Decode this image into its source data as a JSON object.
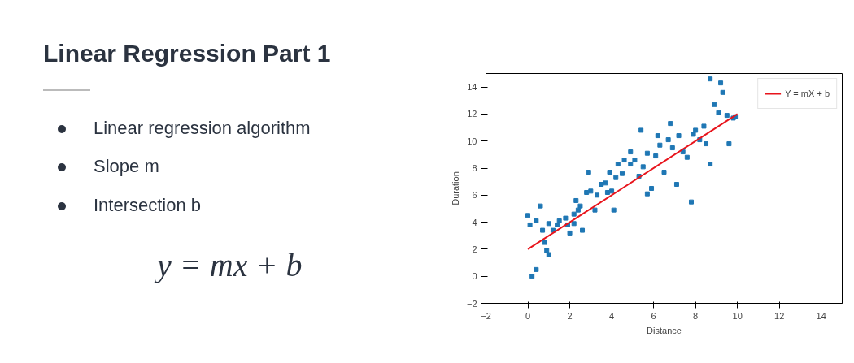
{
  "chart_data": {
    "type": "scatter",
    "title": "Linear Regression Part 1",
    "annotations": [
      "Linear regression algorithm",
      "Slope m",
      "Intersection b",
      "y = mx + b"
    ],
    "xlabel": "Distance",
    "ylabel": "Duration",
    "xlim": [
      -2,
      15
    ],
    "ylim": [
      -2,
      15
    ],
    "xticks": [
      -2,
      0,
      2,
      4,
      6,
      8,
      10,
      12,
      14
    ],
    "yticks": [
      -2,
      0,
      2,
      4,
      6,
      8,
      10,
      12,
      14
    ],
    "grid": false,
    "legend": "top right",
    "marker": "square",
    "series": [
      {
        "color": "#1f77b4",
        "x": [
          0.0,
          0.1,
          0.2,
          0.4,
          0.6,
          0.4,
          0.8,
          0.9,
          1.0,
          0.7,
          1.0,
          1.2,
          1.4,
          1.5,
          1.8,
          1.9,
          2.0,
          2.2,
          2.2,
          2.4,
          2.3,
          2.5,
          2.6,
          2.8,
          2.9,
          3.0,
          3.2,
          3.3,
          3.5,
          3.7,
          3.8,
          3.9,
          4.0,
          4.1,
          4.2,
          4.3,
          4.5,
          4.6,
          4.9,
          4.9,
          5.1,
          5.3,
          5.4,
          5.5,
          5.7,
          5.7,
          5.9,
          6.1,
          6.2,
          6.3,
          6.5,
          6.7,
          6.8,
          6.9,
          7.1,
          7.2,
          7.4,
          7.6,
          7.8,
          7.9,
          8.0,
          8.2,
          8.4,
          8.5,
          8.7,
          8.7,
          8.9,
          9.1,
          9.2,
          9.3,
          9.5,
          9.6,
          9.8,
          9.9
        ],
        "values": [
          4.5,
          3.8,
          0.0,
          0.5,
          5.2,
          4.1,
          2.5,
          1.9,
          1.6,
          3.4,
          3.9,
          3.4,
          3.8,
          4.1,
          4.3,
          3.8,
          3.2,
          3.9,
          4.6,
          4.9,
          5.6,
          5.2,
          3.4,
          6.2,
          7.7,
          6.3,
          4.9,
          6.0,
          6.8,
          6.9,
          6.2,
          7.7,
          6.3,
          4.9,
          7.3,
          8.3,
          7.6,
          8.6,
          9.2,
          8.3,
          8.6,
          7.4,
          10.8,
          8.1,
          6.1,
          9.1,
          6.5,
          8.9,
          10.4,
          9.7,
          7.7,
          10.1,
          11.3,
          9.5,
          6.8,
          10.4,
          9.2,
          8.8,
          5.5,
          10.5,
          10.8,
          10.1,
          11.1,
          9.8,
          8.3,
          14.6,
          12.7,
          12.1,
          14.3,
          13.6,
          11.9,
          9.8,
          11.7,
          11.8
        ]
      },
      {
        "type": "line",
        "name": "Y = mX + b",
        "color": "#e8141c",
        "marker": "none",
        "x": [
          0,
          10
        ],
        "values": [
          2,
          12
        ]
      }
    ]
  }
}
